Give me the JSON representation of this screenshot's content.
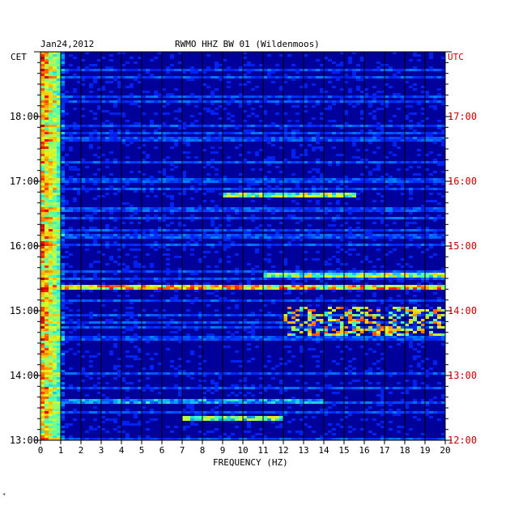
{
  "chart_data": {
    "type": "heatmap",
    "title_date": "Jan24,2012",
    "title_station": "RWMO HHZ BW 01 (Wildenmoos)",
    "xlabel": "FREQUENCY (HZ)",
    "left_axis_tz": "CET",
    "right_axis_tz": "UTC",
    "x_ticks": [
      "0",
      "1",
      "2",
      "3",
      "4",
      "5",
      "6",
      "7",
      "8",
      "9",
      "10",
      "11",
      "12",
      "13",
      "14",
      "15",
      "16",
      "17",
      "18",
      "19",
      "20"
    ],
    "xlim": [
      0,
      20
    ],
    "left_ticks": [
      "13:00",
      "14:00",
      "15:00",
      "16:00",
      "17:00",
      "18:00"
    ],
    "right_ticks": [
      "12:00",
      "13:00",
      "14:00",
      "15:00",
      "16:00",
      "17:00"
    ],
    "time_range_hours": [
      13.0,
      19.0
    ],
    "colormap": [
      "#00008f",
      "#0000cc",
      "#0030ff",
      "#00a0ff",
      "#40ffc0",
      "#e0ff20",
      "#ffa000",
      "#ff2000",
      "#b00000"
    ],
    "background_color": "#00009a",
    "features": [
      {
        "time_hours": 15.35,
        "freq_from": 0,
        "freq_to": 20,
        "level": 0.75
      },
      {
        "time_hours": 15.55,
        "freq_from": 11,
        "freq_to": 20,
        "level": 0.6
      },
      {
        "time_hours_from": 14.6,
        "time_hours_to": 15.05,
        "freq_from": 12,
        "freq_to": 20,
        "level": 0.7
      },
      {
        "time_hours": 16.8,
        "freq_from": 9,
        "freq_to": 15.5,
        "level": 0.6
      },
      {
        "time_hours": 13.35,
        "freq_from": 7,
        "freq_to": 12,
        "level": 0.55
      },
      {
        "time_hours": 13.6,
        "freq_from": 0,
        "freq_to": 14,
        "level": 0.4
      }
    ]
  },
  "corner_mark": "*"
}
